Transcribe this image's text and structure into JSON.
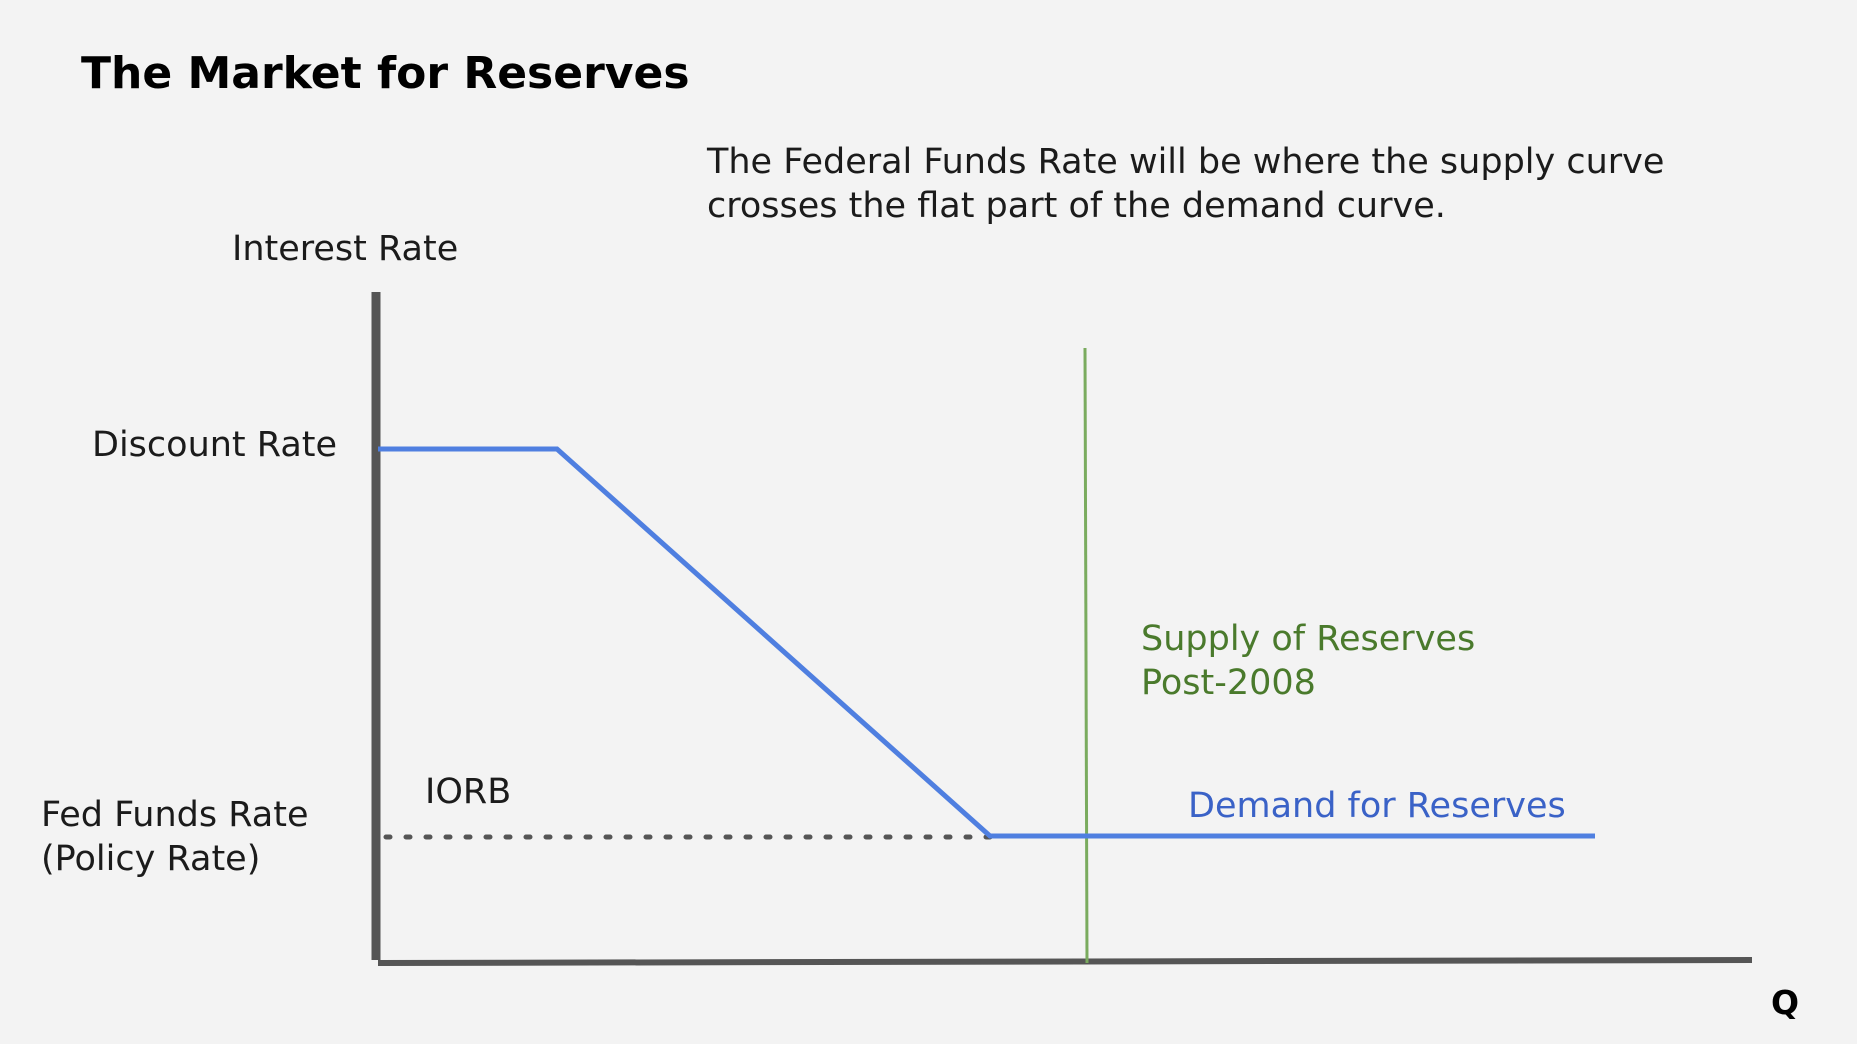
{
  "title": "The Market for Reserves",
  "caption": "The Federal Funds Rate will be where the supply curve crosses the flat part of the demand curve.",
  "axis": {
    "y_label": "Interest Rate",
    "x_label": "Q"
  },
  "rate_labels": {
    "discount": "Discount Rate",
    "fed_funds_line1": "Fed Funds Rate",
    "fed_funds_line2": "(Policy Rate)",
    "iorb": "IORB"
  },
  "curves": {
    "supply_line1": "Supply of Reserves",
    "supply_line2": "Post-2008",
    "demand": "Demand for Reserves"
  },
  "colors": {
    "demand": "#4f7fe0",
    "supply": "#7aab5e",
    "axis": "#555555",
    "dotted": "#555555"
  }
}
